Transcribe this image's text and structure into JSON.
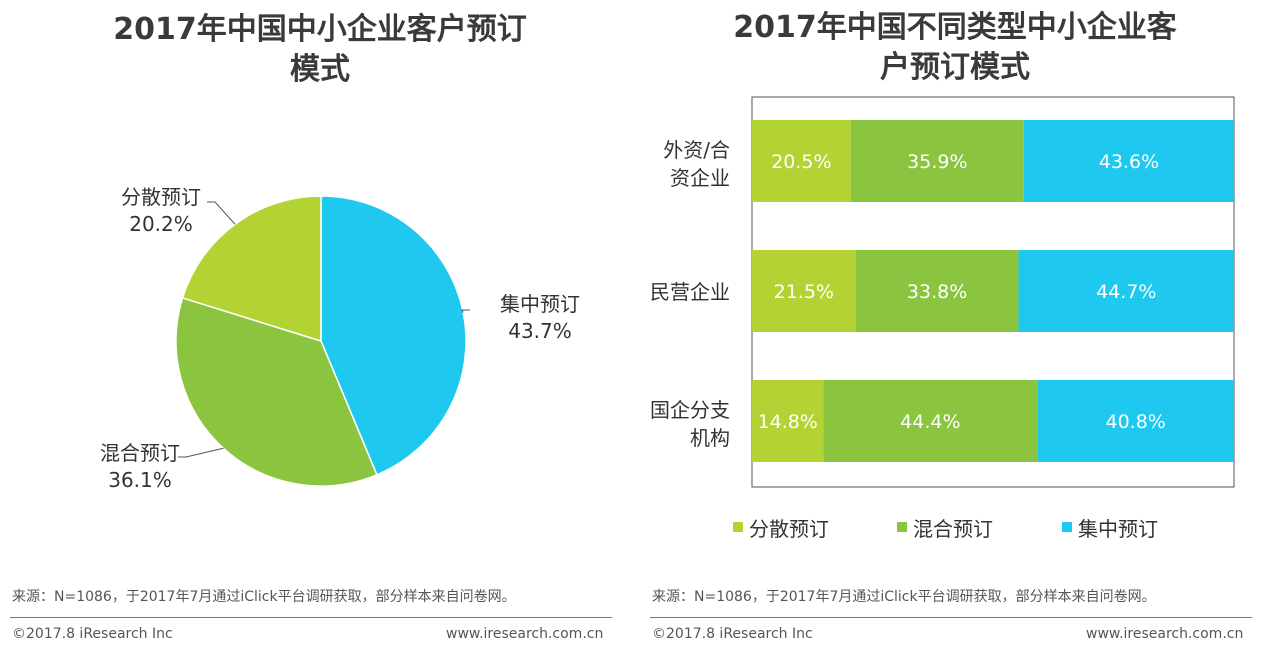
{
  "colors": {
    "scattered": "#b3d334",
    "mixed": "#8bc540",
    "centralized": "#1ec8ef",
    "text_dark": "#3a3a3a",
    "frame": "#555555"
  },
  "left_panel": {
    "title_line1": "2017年中国中小企业客户预订",
    "title_line2": "模式",
    "source": "来源：N=1086，于2017年7月通过iClick平台调研获取，部分样本来自问卷网。",
    "copyright": "©2017.8 iResearch Inc",
    "website": "www.iresearch.com.cn"
  },
  "right_panel": {
    "title_line1": "2017年中国不同类型中小企业客",
    "title_line2": "户预订模式",
    "source": "来源：N=1086，于2017年7月通过iClick平台调研获取，部分样本来自问卷网。",
    "copyright": "©2017.8 iResearch Inc",
    "website": "www.iresearch.com.cn"
  },
  "chart_data": [
    {
      "type": "pie",
      "title": "2017年中国中小企业客户预订模式",
      "slices": [
        {
          "label": "集中预订",
          "value": 43.7,
          "display": "43.7%",
          "color_key": "centralized"
        },
        {
          "label": "混合预订",
          "value": 36.1,
          "display": "36.1%",
          "color_key": "mixed"
        },
        {
          "label": "分散预订",
          "value": 20.2,
          "display": "20.2%",
          "color_key": "scattered"
        }
      ]
    },
    {
      "type": "bar",
      "stacked": true,
      "orientation": "horizontal",
      "title": "2017年中国不同类型中小企业客户预订模式",
      "categories": [
        {
          "line1": "外资/合",
          "line2": "资企业"
        },
        {
          "line1": "民营企业",
          "line2": ""
        },
        {
          "line1": "国企分支",
          "line2": "机构"
        }
      ],
      "series": [
        {
          "name": "分散预订",
          "color_key": "scattered",
          "values": [
            20.5,
            21.5,
            14.8
          ],
          "labels": [
            "20.5%",
            "21.5%",
            "14.8%"
          ]
        },
        {
          "name": "混合预订",
          "color_key": "mixed",
          "values": [
            35.9,
            33.8,
            44.4
          ],
          "labels": [
            "35.9%",
            "33.8%",
            "44.4%"
          ]
        },
        {
          "name": "集中预订",
          "color_key": "centralized",
          "values": [
            43.6,
            44.7,
            40.8
          ],
          "labels": [
            "43.6%",
            "44.7%",
            "40.8%"
          ]
        }
      ],
      "xlim": [
        0,
        100
      ],
      "legend": "bottom"
    }
  ]
}
